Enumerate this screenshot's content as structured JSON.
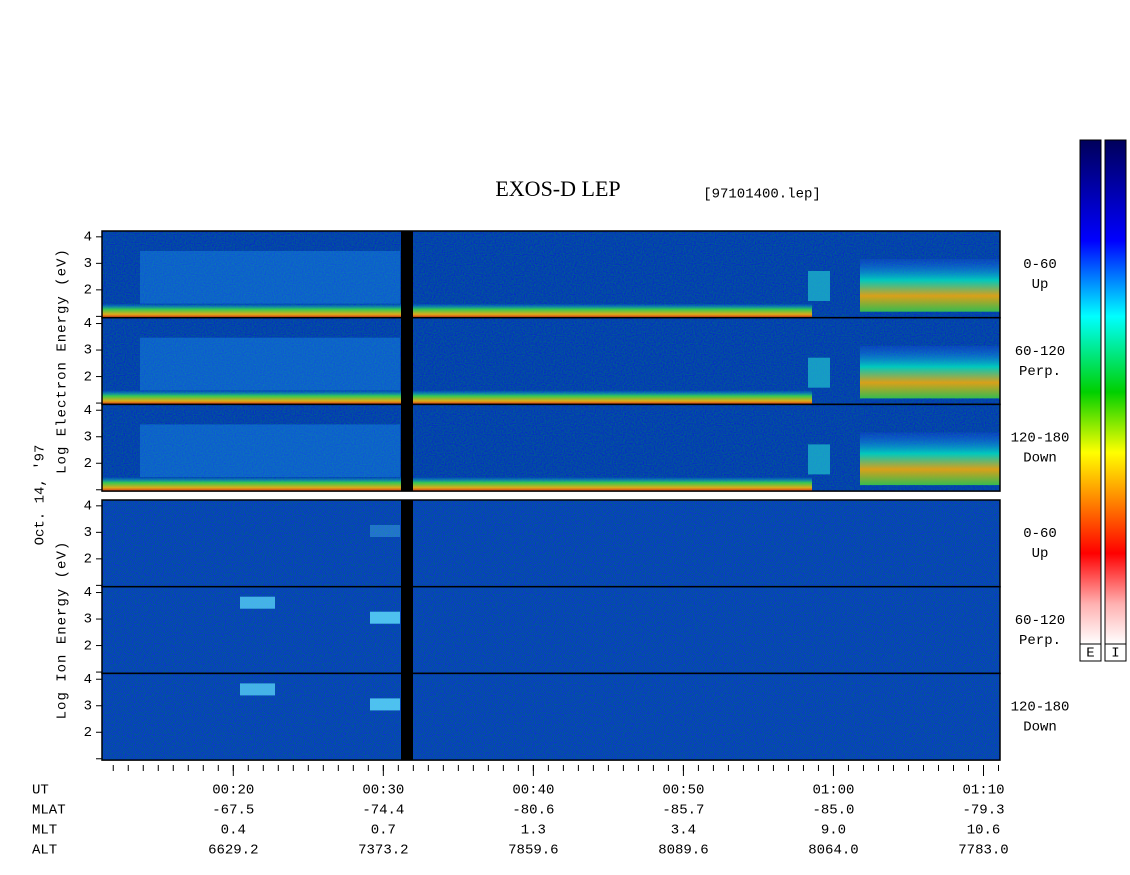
{
  "chart_data": {
    "type": "spectrogram",
    "title": "EXOS-D LEP",
    "file": "[97101400.lep]",
    "date": "Oct. 14, '97",
    "colorbar_labels": [
      "E",
      "I"
    ],
    "x_axis": {
      "xlim": [
        11.25,
        71.1
      ],
      "minor_step": 1,
      "row_label": "UT",
      "xticks": [
        {
          "value": 20,
          "label": "00:20"
        },
        {
          "value": 30,
          "label": "00:30"
        },
        {
          "value": 40,
          "label": "00:40"
        },
        {
          "value": 50,
          "label": "00:50"
        },
        {
          "value": 60,
          "label": "01:00"
        },
        {
          "value": 70,
          "label": "01:10"
        }
      ]
    },
    "groups": [
      {
        "label": "Log Electron Energy (eV)",
        "species": "electron",
        "ylim": [
          0.95,
          4.22
        ],
        "yticks": [
          {
            "value": 1,
            "label": null
          },
          2,
          3,
          4
        ],
        "panels": [
          {
            "range": "0-60",
            "direction": "Up"
          },
          {
            "range": "60-120",
            "direction": "Perp."
          },
          {
            "range": "120-180",
            "direction": "Down"
          }
        ]
      },
      {
        "label": "Log Ion Energy (eV)",
        "species": "ion",
        "ylim": [
          0.95,
          4.22
        ],
        "yticks": [
          {
            "value": 1,
            "label": null
          },
          2,
          3,
          4
        ],
        "panels": [
          {
            "range": "0-60",
            "direction": "Up"
          },
          {
            "range": "60-120",
            "direction": "Perp."
          },
          {
            "range": "120-180",
            "direction": "Down"
          }
        ]
      }
    ],
    "ephemeris": [
      {
        "label": "MLAT",
        "values": [
          "-67.5",
          "-74.4",
          "-80.6",
          "-85.7",
          "-85.0",
          "-79.3"
        ]
      },
      {
        "label": "MLT",
        "values": [
          "0.4",
          "0.7",
          "1.3",
          "3.4",
          "9.0",
          "10.6"
        ]
      },
      {
        "label": "ALT",
        "values": [
          "6629.2",
          "7373.2",
          "7859.6",
          "8089.6",
          "8064.0",
          "7783.0"
        ]
      }
    ]
  }
}
